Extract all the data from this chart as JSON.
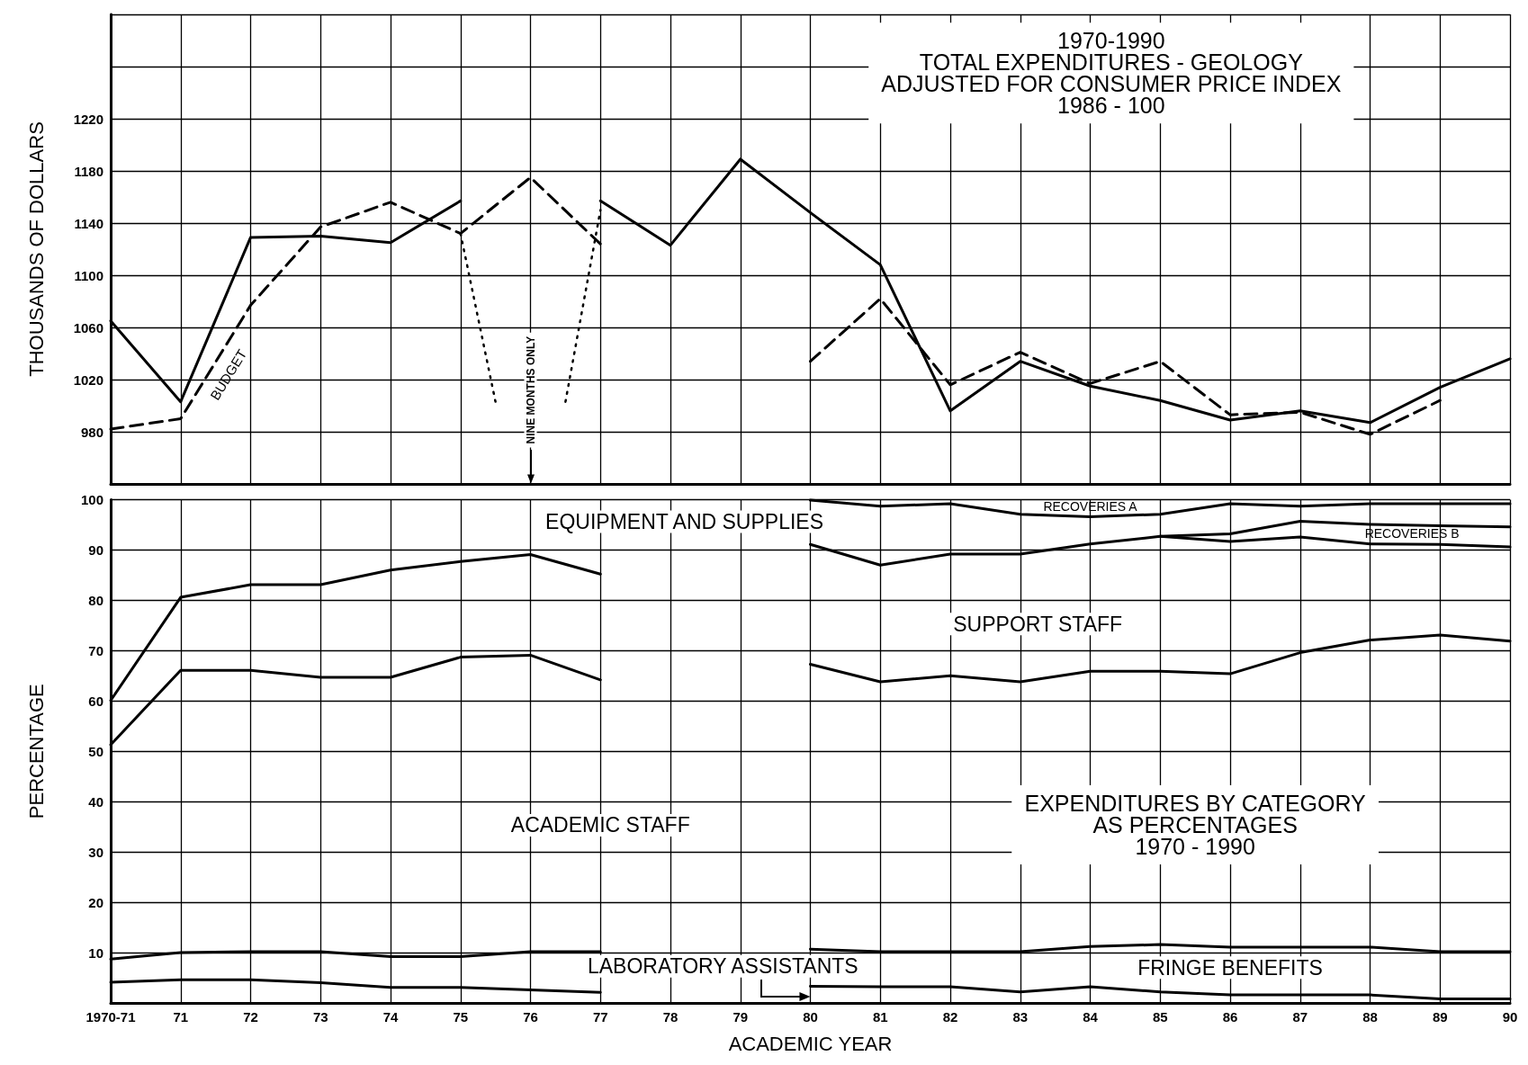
{
  "chart_data": [
    {
      "type": "line",
      "title": "1970-1990\nTOTAL EXPENDITURES - GEOLOGY\nADJUSTED FOR CONSUMER PRICE INDEX\n1986 - 100",
      "ylabel": "THOUSANDS OF DOLLARS",
      "x": [
        1970,
        1971,
        1972,
        1973,
        1974,
        1975,
        1976,
        1977,
        1978,
        1979,
        1980,
        1981,
        1982,
        1983,
        1984,
        1985,
        1986,
        1987,
        1988,
        1989,
        1990
      ],
      "series": [
        {
          "color": "#000000",
          "line_style": "solid",
          "values": [
            1065,
            1003,
            1129,
            1130,
            1125,
            1157,
            null,
            1157,
            1123,
            1189,
            1148,
            1108,
            996,
            1034,
            1015,
            1004,
            989,
            996,
            987,
            1014,
            1036
          ]
        },
        {
          "name": "BUDGET",
          "color": "#000000",
          "line_style": "dashed",
          "values": [
            982,
            990,
            1077,
            1137,
            1156,
            1132,
            1175,
            1124,
            null,
            null,
            1034,
            1082,
            1016,
            1041,
            1017,
            1034,
            993,
            995,
            978,
            1004,
            null
          ]
        },
        {
          "color": "#000000",
          "line_style": "dotted",
          "x": [
            1975,
            1975.5,
            1976,
            1976.5,
            1977
          ],
          "values": [
            1132,
            1003,
            null,
            1003,
            1150
          ]
        }
      ],
      "xlim": [
        1970,
        1990
      ],
      "xticks": [
        1970,
        1971,
        1972,
        1973,
        1974,
        1975,
        1976,
        1977,
        1978,
        1979,
        1980,
        1981,
        1982,
        1983,
        1984,
        1985,
        1986,
        1987,
        1988,
        1989,
        1990
      ],
      "ylim": [
        940,
        1300
      ],
      "yticks": [
        {
          "value": 940,
          "label": null
        },
        980,
        1020,
        1060,
        1100,
        1140,
        1180,
        1220,
        {
          "value": 1260,
          "label": null
        },
        {
          "value": 1300,
          "label": null
        }
      ],
      "annotations": [
        "NINE MONTHS ONLY"
      ],
      "tick_labels": "y",
      "grid": true,
      "legend": false,
      "marker": "none"
    },
    {
      "type": "line",
      "title": "EXPENDITURES BY CATEGORY\nAS PERCENTAGES\n1970 - 1990",
      "xlabel": "ACADEMIC YEAR",
      "ylabel": "PERCENTAGE",
      "x": [
        1970,
        1971,
        1972,
        1973,
        1974,
        1975,
        1976,
        1977,
        1978,
        1979,
        1980,
        1981,
        1982,
        1983,
        1984,
        1985,
        1986,
        1987,
        1988,
        1989,
        1990
      ],
      "series": [
        {
          "color": "#000000",
          "values": [
            60.1,
            80.6,
            83.1,
            83.1,
            86,
            87.7,
            89.1,
            85.2,
            null,
            null,
            91.1,
            87,
            89.2,
            89.2,
            91.2,
            92.7,
            93.2,
            95.7,
            95.1,
            94.8,
            94.6
          ]
        },
        {
          "color": "#000000",
          "x": [
            1985,
            1986,
            1987,
            1988,
            1989,
            1990
          ],
          "values": [
            92.7,
            91.7,
            92.6,
            91.2,
            91.1,
            90.6
          ]
        },
        {
          "color": "#000000",
          "values": [
            null,
            null,
            null,
            null,
            null,
            null,
            null,
            null,
            null,
            null,
            99.9,
            98.7,
            99.2,
            97.1,
            96.6,
            97.1,
            99.2,
            98.7,
            99.2,
            99.2,
            99.2
          ]
        },
        {
          "color": "#000000",
          "values": [
            51.3,
            66.1,
            66.1,
            64.7,
            64.7,
            68.7,
            69.1,
            64.2,
            null,
            null,
            67.3,
            63.8,
            65,
            63.8,
            65.9,
            65.9,
            65.4,
            69.6,
            72.1,
            73.1,
            71.9
          ]
        },
        {
          "color": "#000000",
          "values": [
            8.7,
            10,
            10.2,
            10.2,
            9.2,
            9.2,
            10.2,
            10.2,
            null,
            null,
            10.7,
            10.2,
            10.2,
            10.2,
            11.2,
            11.6,
            11.1,
            11.1,
            11.1,
            10.2,
            10.2
          ]
        },
        {
          "color": "#000000",
          "values": [
            4.1,
            4.6,
            4.6,
            4,
            3.1,
            3.1,
            2.6,
            2.1,
            null,
            null,
            3.3,
            3.2,
            3.2,
            2.2,
            3.2,
            2.2,
            1.6,
            1.6,
            1.6,
            0.8,
            0.8
          ]
        }
      ],
      "xlim": [
        1970,
        1990
      ],
      "xticks": [
        {
          "value": 1970,
          "label": "1970-71"
        },
        {
          "value": 1971,
          "label": "71"
        },
        {
          "value": 1972,
          "label": "72"
        },
        {
          "value": 1973,
          "label": "73"
        },
        {
          "value": 1974,
          "label": "74"
        },
        {
          "value": 1975,
          "label": "75"
        },
        {
          "value": 1976,
          "label": "76"
        },
        {
          "value": 1977,
          "label": "77"
        },
        {
          "value": 1978,
          "label": "78"
        },
        {
          "value": 1979,
          "label": "79"
        },
        {
          "value": 1980,
          "label": "80"
        },
        {
          "value": 1981,
          "label": "81"
        },
        {
          "value": 1982,
          "label": "82"
        },
        {
          "value": 1983,
          "label": "83"
        },
        {
          "value": 1984,
          "label": "84"
        },
        {
          "value": 1985,
          "label": "85"
        },
        {
          "value": 1986,
          "label": "86"
        },
        {
          "value": 1987,
          "label": "87"
        },
        {
          "value": 1988,
          "label": "88"
        },
        {
          "value": 1989,
          "label": "89"
        },
        {
          "value": 1990,
          "label": "90"
        }
      ],
      "ylim": [
        0,
        100
      ],
      "yticks": [
        {
          "value": 0,
          "label": null
        },
        10,
        20,
        30,
        40,
        50,
        60,
        70,
        80,
        90,
        100
      ],
      "annotations": [
        "EQUIPMENT AND SUPPLIES",
        "SUPPORT STAFF",
        "ACADEMIC STAFF",
        "LABORATORY ASSISTANTS",
        "FRINGE BENEFITS",
        "RECOVERIES A",
        "RECOVERIES B"
      ],
      "grid": true,
      "legend": false,
      "marker": "none"
    }
  ]
}
